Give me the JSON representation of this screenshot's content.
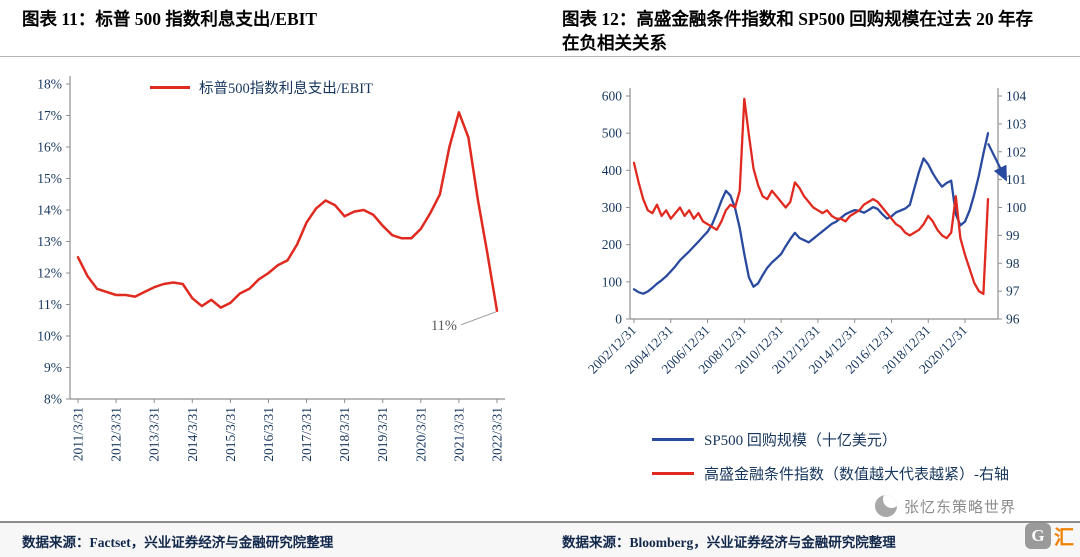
{
  "page": {
    "bg": "#ffffff"
  },
  "left_panel": {
    "title": "图表 11：标普 500 指数利息支出/EBIT",
    "source": "数据来源：Factset，兴业证券经济与金融研究院整理"
  },
  "right_panel": {
    "title": "图表 12：高盛金融条件指数和 SP500 回购规模在过去 20 年存在负相关关系",
    "source": "数据来源：Bloomberg，兴业证券经济与金融研究院整理",
    "legend": [
      {
        "label": "SP500 回购规模（十亿美元）",
        "color": "#2a4a9f"
      },
      {
        "label": "高盛金融条件指数（数值越大代表越紧）-右轴",
        "color": "#e02a20"
      }
    ]
  },
  "watermark": {
    "text": "张忆东策略世界",
    "logo_g": "G",
    "logo_text": "汇",
    "color": "#8c8c8c",
    "logo_orange": "#ef8200"
  },
  "chart_data": [
    {
      "type": "line",
      "title": "标普500指数利息支出/EBIT",
      "legend": [
        "标普500指数利息支出/EBIT"
      ],
      "line_color": "#e02a20",
      "grid": false,
      "legend_position": "top-center",
      "xlabel": "",
      "ylabel": "",
      "ylim": [
        8,
        18
      ],
      "yticks": [
        "8%",
        "9%",
        "10%",
        "11%",
        "12%",
        "13%",
        "14%",
        "15%",
        "16%",
        "17%",
        "18%"
      ],
      "x_tick_labels": [
        "2011/3/31",
        "2012/3/31",
        "2013/3/31",
        "2014/3/31",
        "2015/3/31",
        "2016/3/31",
        "2017/3/31",
        "2018/3/31",
        "2019/3/31",
        "2020/3/31",
        "2021/3/31",
        "2022/3/31"
      ],
      "x_tick_step": 4,
      "x_frequency": "quarterly",
      "values": [
        12.5,
        11.9,
        11.5,
        11.4,
        11.3,
        11.3,
        11.25,
        11.4,
        11.55,
        11.65,
        11.7,
        11.65,
        11.2,
        10.95,
        11.15,
        10.9,
        11.05,
        11.35,
        11.5,
        11.8,
        12.0,
        12.25,
        12.4,
        12.9,
        13.6,
        14.05,
        14.3,
        14.15,
        13.8,
        13.95,
        14.0,
        13.85,
        13.5,
        13.2,
        13.1,
        13.1,
        13.4,
        13.9,
        14.5,
        16.0,
        17.1,
        16.3,
        14.3,
        12.6,
        10.8
      ],
      "annotation": {
        "text": "11%",
        "at": "last-point",
        "color": "#595959"
      }
    },
    {
      "type": "line",
      "title": "高盛金融条件指数和SP500回购规模在过去20年存在负相关关系",
      "grid": false,
      "legend_position": "bottom",
      "left_ylim": [
        0,
        600
      ],
      "left_yticks": [
        "0",
        "100",
        "200",
        "300",
        "400",
        "500",
        "600"
      ],
      "right_ylim": [
        96,
        104
      ],
      "right_yticks": [
        "96",
        "97",
        "98",
        "99",
        "100",
        "101",
        "102",
        "103",
        "104"
      ],
      "x_tick_labels": [
        "2002/12/31",
        "2004/12/31",
        "2006/12/31",
        "2008/12/31",
        "2010/12/31",
        "2012/12/31",
        "2014/12/31",
        "2016/12/31",
        "2018/12/31",
        "2020/12/31"
      ],
      "x_tick_step": 8,
      "x_frequency": "quarterly",
      "series": [
        {
          "name": "SP500 回购规模（十亿美元）",
          "axis": "left",
          "color": "#2a4a9f",
          "values": [
            80,
            72,
            68,
            74,
            84,
            95,
            104,
            115,
            128,
            142,
            158,
            170,
            182,
            195,
            208,
            222,
            235,
            255,
            285,
            318,
            345,
            332,
            298,
            245,
            175,
            112,
            87,
            96,
            118,
            138,
            152,
            163,
            175,
            196,
            215,
            232,
            218,
            212,
            206,
            216,
            226,
            236,
            246,
            256,
            262,
            272,
            282,
            288,
            293,
            291,
            286,
            293,
            301,
            296,
            282,
            270,
            276,
            287,
            292,
            297,
            307,
            352,
            396,
            432,
            416,
            392,
            372,
            356,
            366,
            372,
            282,
            252,
            262,
            292,
            335,
            385,
            445,
            500
          ]
        },
        {
          "name": "高盛金融条件指数（数值越大代表越紧）-右轴",
          "axis": "right",
          "color": "#e02a20",
          "values": [
            101.6,
            100.9,
            100.3,
            99.9,
            99.8,
            100.1,
            99.7,
            99.9,
            99.6,
            99.8,
            100.0,
            99.7,
            99.9,
            99.6,
            99.8,
            99.5,
            99.4,
            99.3,
            99.2,
            99.5,
            99.9,
            100.1,
            100.0,
            100.6,
            103.9,
            102.6,
            101.4,
            100.8,
            100.4,
            100.3,
            100.6,
            100.4,
            100.2,
            100.0,
            100.2,
            100.9,
            100.7,
            100.4,
            100.2,
            100.0,
            99.9,
            99.8,
            99.9,
            99.7,
            99.6,
            99.6,
            99.5,
            99.7,
            99.8,
            99.9,
            100.1,
            100.2,
            100.3,
            100.2,
            100.0,
            99.8,
            99.6,
            99.4,
            99.3,
            99.1,
            99.0,
            99.1,
            99.2,
            99.4,
            99.7,
            99.5,
            99.2,
            99.0,
            98.9,
            99.1,
            100.4,
            98.9,
            98.3,
            97.8,
            97.3,
            97.0,
            96.9,
            100.3
          ]
        }
      ],
      "annotation": {
        "type": "arrow",
        "direction": "down-right",
        "color": "#2a4a9f"
      }
    }
  ]
}
